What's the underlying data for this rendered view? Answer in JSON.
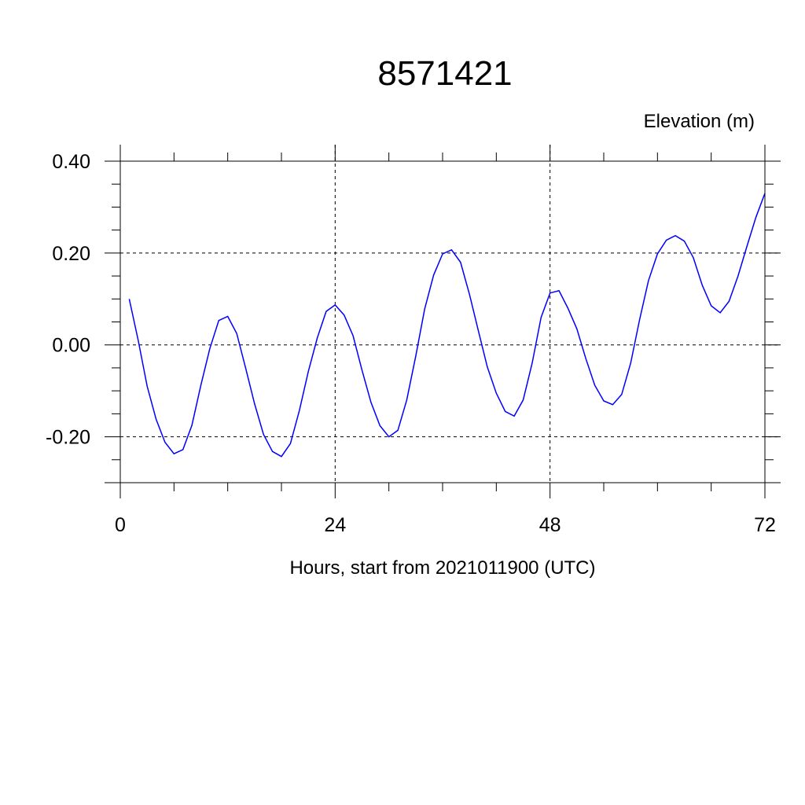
{
  "chart_data": {
    "type": "line",
    "title": "8571421",
    "ylabel": "Elevation (m)",
    "xlabel": "Hours, start from 2021011900 (UTC)",
    "xlim": [
      0,
      72
    ],
    "ylim": [
      -0.3,
      0.4
    ],
    "x_major_ticks": [
      0,
      24,
      48,
      72
    ],
    "x_tick_labels": [
      "0",
      "24",
      "48",
      "72"
    ],
    "x_minor_step": 6,
    "y_major_ticks": [
      0.4,
      0.2,
      0.0,
      -0.2
    ],
    "y_tick_labels": [
      "0.40",
      "0.20",
      "0.00",
      "-0.20"
    ],
    "y_minor_step": 0.05,
    "grid": true,
    "series": [
      {
        "color": "#0000ff",
        "x": [
          1,
          2,
          3,
          4,
          5,
          6,
          7,
          8,
          9,
          10,
          11,
          12,
          13,
          14,
          15,
          16,
          17,
          18,
          19,
          20,
          21,
          22,
          23,
          24,
          25,
          26,
          27,
          28,
          29,
          30,
          31,
          32,
          33,
          34,
          35,
          36,
          37,
          38,
          39,
          40,
          41,
          42,
          43,
          44,
          45,
          46,
          47,
          48,
          49,
          50,
          51,
          52,
          53,
          54,
          55,
          56,
          57,
          58,
          59,
          60,
          61,
          62,
          63,
          64,
          65,
          66,
          67,
          68,
          69,
          70,
          71,
          72
        ],
        "values": [
          0.1,
          0.01,
          -0.09,
          -0.162,
          -0.212,
          -0.237,
          -0.228,
          -0.175,
          -0.088,
          -0.008,
          0.053,
          0.062,
          0.025,
          -0.05,
          -0.128,
          -0.195,
          -0.232,
          -0.243,
          -0.215,
          -0.143,
          -0.058,
          0.015,
          0.073,
          0.087,
          0.065,
          0.02,
          -0.055,
          -0.125,
          -0.176,
          -0.2,
          -0.186,
          -0.12,
          -0.025,
          0.078,
          0.152,
          0.198,
          0.207,
          0.18,
          0.11,
          0.03,
          -0.048,
          -0.105,
          -0.145,
          -0.155,
          -0.12,
          -0.04,
          0.06,
          0.113,
          0.118,
          0.08,
          0.035,
          -0.03,
          -0.088,
          -0.122,
          -0.13,
          -0.108,
          -0.04,
          0.055,
          0.14,
          0.198,
          0.228,
          0.238,
          0.226,
          0.19,
          0.13,
          0.085,
          0.07,
          0.095,
          0.15,
          0.215,
          0.278,
          0.33
        ]
      }
    ]
  }
}
